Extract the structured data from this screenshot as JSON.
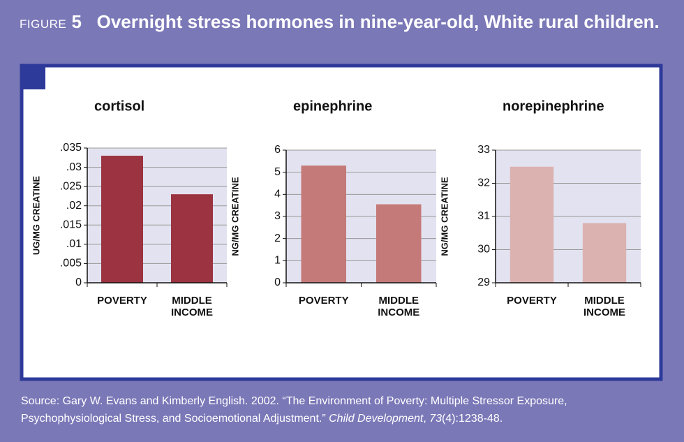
{
  "figure_label": "FIGURE",
  "figure_number": "5",
  "title": "Overnight stress hormones in nine-year-old, White rural children.",
  "source": [
    "Source: Gary W. Evans and Kimberly English. 2002. “The Environment of Poverty: Multiple Stressor Exposure, Psychophysiological Stress, and Socioemotional Adjustment.” ",
    "Child Development",
    ", ",
    "73",
    "(4):1238-48."
  ],
  "chart_data": [
    {
      "type": "bar",
      "title": "cortisol",
      "y_label": "UG/MG CREATINE",
      "categories": [
        "POVERTY",
        "MIDDLE INCOME"
      ],
      "values": [
        0.033,
        0.023
      ],
      "color": "#9b3340",
      "ylim": [
        0,
        0.035
      ],
      "yticks": [
        0,
        {
          "value": 0.005,
          "label": ".005"
        },
        {
          "value": 0.01,
          "label": ".01"
        },
        {
          "value": 0.015,
          "label": ".015"
        },
        {
          "value": 0.02,
          "label": ".02"
        },
        {
          "value": 0.025,
          "label": ".025"
        },
        {
          "value": 0.03,
          "label": ".03"
        },
        {
          "value": 0.035,
          "label": ".035"
        }
      ],
      "grid": true
    },
    {
      "type": "bar",
      "title": "epinephrine",
      "y_label": "NG/MG CREATINE",
      "categories": [
        "POVERTY",
        "MIDDLE INCOME"
      ],
      "values": [
        5.3,
        3.55
      ],
      "color": "#c47a78",
      "ylim": [
        0,
        6
      ],
      "yticks": [
        0,
        1,
        2,
        3,
        4,
        5,
        6
      ],
      "grid": true
    },
    {
      "type": "bar",
      "title": "norepinephrine",
      "y_label": "NG/MG CREATINE",
      "categories": [
        "POVERTY",
        "MIDDLE INCOME"
      ],
      "values": [
        32.5,
        30.8
      ],
      "color": "#dcb2b0",
      "ylim": [
        29,
        33
      ],
      "yticks": [
        29,
        30,
        31,
        32,
        33
      ],
      "grid": true
    }
  ]
}
